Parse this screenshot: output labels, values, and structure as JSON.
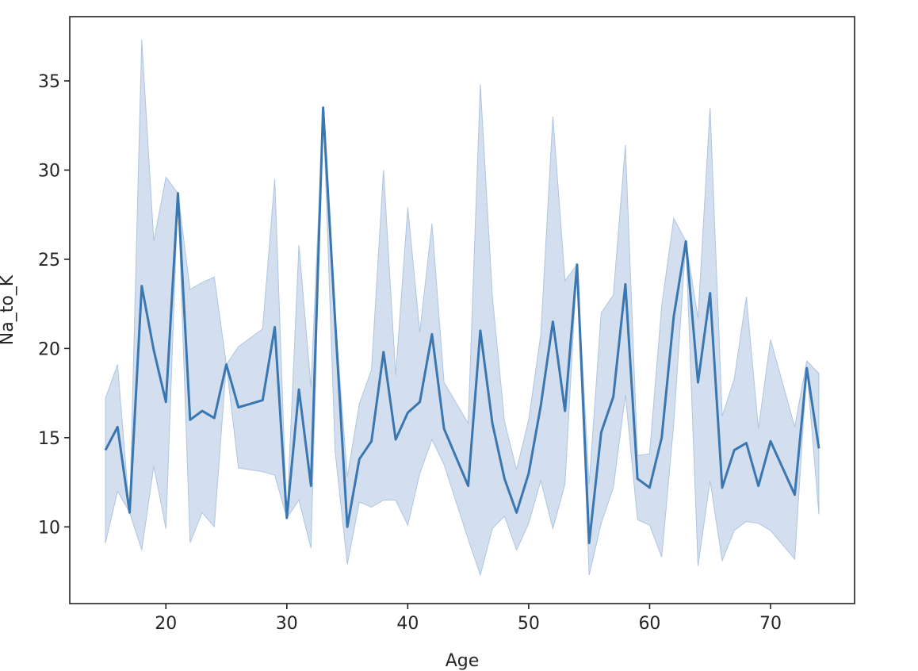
{
  "chart_data": {
    "type": "line",
    "xlabel": "Age",
    "ylabel": "Na_to_K",
    "xlim": [
      12.05,
      76.95
    ],
    "ylim": [
      5.7,
      38.6
    ],
    "xticks": [
      20,
      30,
      40,
      50,
      60,
      70
    ],
    "yticks": [
      10,
      15,
      20,
      25,
      30,
      35
    ],
    "grid": false,
    "legend": "none",
    "colors": {
      "line": "#3a76af",
      "band": "#aec5e0"
    },
    "series": [
      {
        "x": [
          15,
          16,
          17,
          18,
          19,
          20,
          21,
          22,
          23,
          24,
          25,
          26,
          28,
          29,
          30,
          31,
          32,
          33,
          34,
          35,
          36,
          37,
          38,
          39,
          40,
          41,
          42,
          43,
          45,
          46,
          47,
          48,
          49,
          50,
          51,
          52,
          53,
          54,
          55,
          56,
          57,
          58,
          59,
          60,
          61,
          62,
          63,
          64,
          65,
          66,
          67,
          68,
          69,
          70,
          72,
          73,
          74
        ],
        "y": [
          14.3,
          15.6,
          10.8,
          23.5,
          19.9,
          17.0,
          28.7,
          16.0,
          16.5,
          16.1,
          19.1,
          16.7,
          17.1,
          21.2,
          10.5,
          17.7,
          12.3,
          33.5,
          21.5,
          10.0,
          13.8,
          14.8,
          19.8,
          14.9,
          16.4,
          17.0,
          20.8,
          15.5,
          12.3,
          21.0,
          15.8,
          12.7,
          10.8,
          13.0,
          16.8,
          21.5,
          16.5,
          24.7,
          9.1,
          15.3,
          17.3,
          23.6,
          12.7,
          12.2,
          15.0,
          21.8,
          26.0,
          18.1,
          23.1,
          12.2,
          14.3,
          14.7,
          12.3,
          14.8,
          11.8,
          18.9,
          14.4
        ],
        "ci_low": [
          9.1,
          12.0,
          10.8,
          8.7,
          13.4,
          9.9,
          28.7,
          9.1,
          10.8,
          10.0,
          19.1,
          13.3,
          13.1,
          12.9,
          10.5,
          11.5,
          8.8,
          33.5,
          14.2,
          7.9,
          11.4,
          11.1,
          11.5,
          11.5,
          10.1,
          13.0,
          14.9,
          13.5,
          9.3,
          7.3,
          9.9,
          10.6,
          8.7,
          10.2,
          12.6,
          9.9,
          12.4,
          24.7,
          7.3,
          10.2,
          12.2,
          17.4,
          10.4,
          10.1,
          8.3,
          15.8,
          26.0,
          7.8,
          12.6,
          8.1,
          9.8,
          10.3,
          10.2,
          9.8,
          8.2,
          18.9,
          10.7
        ],
        "ci_high": [
          17.2,
          19.1,
          10.8,
          37.3,
          26.0,
          29.6,
          28.7,
          23.3,
          23.7,
          24.0,
          19.1,
          20.1,
          21.1,
          29.5,
          10.5,
          25.8,
          17.8,
          33.5,
          21.8,
          12.8,
          16.9,
          18.8,
          30.0,
          18.5,
          27.9,
          20.9,
          27.0,
          18.1,
          15.8,
          34.8,
          22.9,
          15.9,
          13.2,
          16.0,
          20.8,
          33.0,
          23.8,
          24.7,
          12.4,
          22.0,
          23.0,
          31.4,
          14.0,
          14.1,
          22.4,
          27.3,
          26.0,
          21.7,
          33.5,
          16.2,
          18.3,
          22.9,
          15.5,
          20.5,
          15.6,
          19.3,
          18.6
        ]
      }
    ]
  }
}
